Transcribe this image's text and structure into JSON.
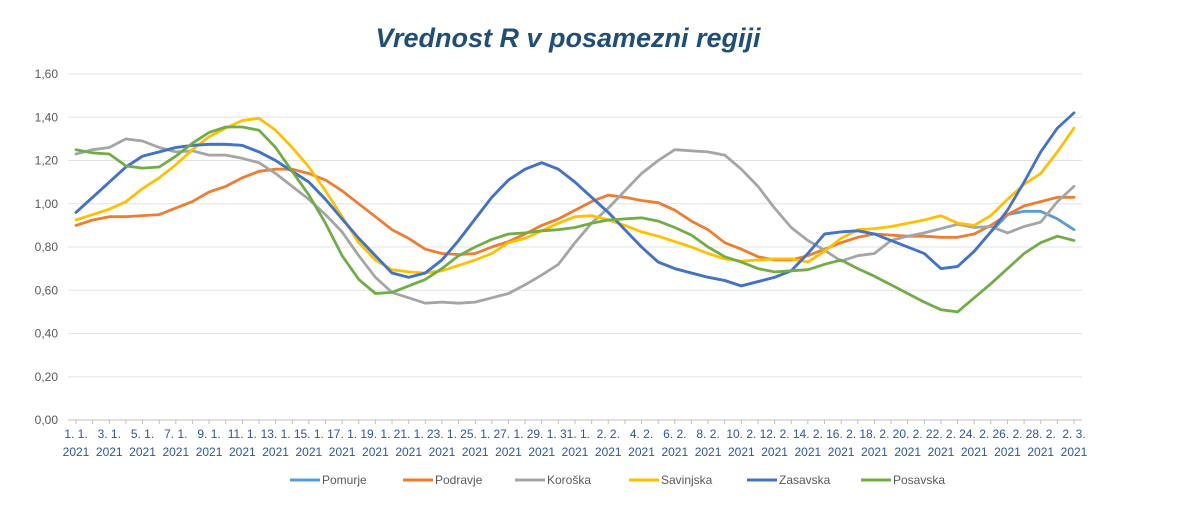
{
  "chart_data": {
    "type": "line",
    "title": "Vrednost R v posamezni regiji",
    "xlabel": "",
    "ylabel": "",
    "ylim": [
      0,
      1.6
    ],
    "yticks": [
      "0,00",
      "0,20",
      "0,40",
      "0,60",
      "0,80",
      "1,00",
      "1,20",
      "1,40",
      "1,60"
    ],
    "ytick_values": [
      0,
      0.2,
      0.4,
      0.6,
      0.8,
      1.0,
      1.2,
      1.4,
      1.6
    ],
    "grid": true,
    "legend_position": "bottom",
    "x_labels": [
      [
        "1. 1.",
        "2021"
      ],
      [
        "3. 1.",
        "2021"
      ],
      [
        "5. 1.",
        "2021"
      ],
      [
        "7. 1.",
        "2021"
      ],
      [
        "9. 1.",
        "2021"
      ],
      [
        "11. 1.",
        "2021"
      ],
      [
        "13. 1.",
        "2021"
      ],
      [
        "15. 1.",
        "2021"
      ],
      [
        "17. 1.",
        "2021"
      ],
      [
        "19. 1.",
        "2021"
      ],
      [
        "21. 1.",
        "2021"
      ],
      [
        "23. 1.",
        "2021"
      ],
      [
        "25. 1.",
        "2021"
      ],
      [
        "27. 1.",
        "2021"
      ],
      [
        "29. 1.",
        "2021"
      ],
      [
        "31. 1.",
        "2021"
      ],
      [
        "2. 2.",
        "2021"
      ],
      [
        "4. 2.",
        "2021"
      ],
      [
        "6. 2.",
        "2021"
      ],
      [
        "8. 2.",
        "2021"
      ],
      [
        "10. 2.",
        "2021"
      ],
      [
        "12. 2.",
        "2021"
      ],
      [
        "14. 2.",
        "2021"
      ],
      [
        "16. 2.",
        "2021"
      ],
      [
        "18. 2.",
        "2021"
      ],
      [
        "20. 2.",
        "2021"
      ],
      [
        "22. 2.",
        "2021"
      ],
      [
        "24. 2.",
        "2021"
      ],
      [
        "26. 2.",
        "2021"
      ],
      [
        "28. 2.",
        "2021"
      ],
      [
        "2. 3.",
        "2021"
      ]
    ],
    "n_points": 61,
    "series": [
      {
        "name": "Pomurje",
        "color": "#5B9BD5",
        "values": [
          0.96,
          1.03,
          1.1,
          1.17,
          1.22,
          1.24,
          1.26,
          1.27,
          1.275,
          1.275,
          1.27,
          1.24,
          1.2,
          1.15,
          1.1,
          1.02,
          0.93,
          0.84,
          0.76,
          0.68,
          0.66,
          0.68,
          0.74,
          0.83,
          0.93,
          1.03,
          1.11,
          1.16,
          1.19,
          1.16,
          1.1,
          1.03,
          0.96,
          0.88,
          0.8,
          0.73,
          0.7,
          0.68,
          0.66,
          0.645,
          0.62,
          0.64,
          0.66,
          0.69,
          0.77,
          0.86,
          0.87,
          0.875,
          0.86,
          0.83,
          0.8,
          0.77,
          0.7,
          0.71,
          0.78,
          0.87,
          0.95,
          0.965,
          0.965,
          0.93,
          0.88
        ]
      },
      {
        "name": "Podravje",
        "color": "#ED7D31",
        "values": [
          0.9,
          0.925,
          0.94,
          0.94,
          0.945,
          0.95,
          0.98,
          1.01,
          1.055,
          1.08,
          1.12,
          1.15,
          1.16,
          1.16,
          1.14,
          1.11,
          1.06,
          1.0,
          0.94,
          0.88,
          0.84,
          0.79,
          0.77,
          0.765,
          0.77,
          0.8,
          0.825,
          0.86,
          0.9,
          0.93,
          0.97,
          1.01,
          1.04,
          1.03,
          1.015,
          1.005,
          0.97,
          0.92,
          0.88,
          0.82,
          0.79,
          0.755,
          0.74,
          0.74,
          0.76,
          0.79,
          0.82,
          0.845,
          0.86,
          0.855,
          0.85,
          0.85,
          0.845,
          0.845,
          0.86,
          0.9,
          0.95,
          0.99,
          1.01,
          1.03,
          1.03
        ]
      },
      {
        "name": "Koroška",
        "color": "#A5A5A5",
        "values": [
          1.23,
          1.25,
          1.26,
          1.3,
          1.29,
          1.26,
          1.24,
          1.245,
          1.225,
          1.225,
          1.21,
          1.19,
          1.14,
          1.08,
          1.02,
          0.95,
          0.87,
          0.76,
          0.66,
          0.59,
          0.565,
          0.54,
          0.545,
          0.54,
          0.545,
          0.565,
          0.585,
          0.625,
          0.67,
          0.72,
          0.82,
          0.91,
          0.98,
          1.06,
          1.14,
          1.2,
          1.25,
          1.245,
          1.24,
          1.225,
          1.16,
          1.08,
          0.98,
          0.89,
          0.83,
          0.785,
          0.735,
          0.76,
          0.77,
          0.83,
          0.85,
          0.865,
          0.885,
          0.905,
          0.89,
          0.895,
          0.865,
          0.895,
          0.915,
          1.01,
          1.08
        ]
      },
      {
        "name": "Savinjska",
        "color": "#FFC000",
        "values": [
          0.925,
          0.95,
          0.975,
          1.01,
          1.07,
          1.12,
          1.18,
          1.25,
          1.31,
          1.35,
          1.385,
          1.395,
          1.34,
          1.26,
          1.17,
          1.06,
          0.94,
          0.82,
          0.74,
          0.695,
          0.685,
          0.68,
          0.69,
          0.715,
          0.74,
          0.77,
          0.82,
          0.84,
          0.875,
          0.91,
          0.94,
          0.945,
          0.925,
          0.9,
          0.87,
          0.85,
          0.825,
          0.8,
          0.77,
          0.745,
          0.735,
          0.74,
          0.745,
          0.745,
          0.73,
          0.78,
          0.84,
          0.88,
          0.885,
          0.895,
          0.91,
          0.925,
          0.945,
          0.91,
          0.9,
          0.945,
          1.02,
          1.09,
          1.14,
          1.24,
          1.35
        ]
      },
      {
        "name": "Zasavska",
        "color": "#4472C4",
        "values": [
          0.96,
          1.03,
          1.1,
          1.17,
          1.22,
          1.24,
          1.26,
          1.27,
          1.275,
          1.275,
          1.27,
          1.24,
          1.2,
          1.15,
          1.1,
          1.02,
          0.93,
          0.84,
          0.76,
          0.68,
          0.66,
          0.68,
          0.74,
          0.83,
          0.93,
          1.03,
          1.11,
          1.16,
          1.19,
          1.16,
          1.1,
          1.03,
          0.96,
          0.88,
          0.8,
          0.73,
          0.7,
          0.68,
          0.66,
          0.645,
          0.62,
          0.64,
          0.66,
          0.69,
          0.77,
          0.86,
          0.87,
          0.875,
          0.86,
          0.83,
          0.8,
          0.77,
          0.7,
          0.71,
          0.78,
          0.87,
          0.97,
          1.1,
          1.24,
          1.35,
          1.42
        ]
      },
      {
        "name": "Posavska",
        "color": "#70AD47",
        "values": [
          1.25,
          1.235,
          1.23,
          1.175,
          1.165,
          1.17,
          1.22,
          1.28,
          1.33,
          1.355,
          1.355,
          1.34,
          1.26,
          1.15,
          1.04,
          0.91,
          0.76,
          0.65,
          0.585,
          0.59,
          0.62,
          0.65,
          0.7,
          0.76,
          0.8,
          0.835,
          0.86,
          0.865,
          0.875,
          0.88,
          0.89,
          0.91,
          0.925,
          0.93,
          0.935,
          0.92,
          0.89,
          0.855,
          0.8,
          0.755,
          0.73,
          0.7,
          0.685,
          0.69,
          0.695,
          0.72,
          0.74,
          0.7,
          0.665,
          0.625,
          0.585,
          0.545,
          0.51,
          0.5,
          0.565,
          0.63,
          0.7,
          0.77,
          0.82,
          0.85,
          0.83
        ]
      }
    ]
  }
}
